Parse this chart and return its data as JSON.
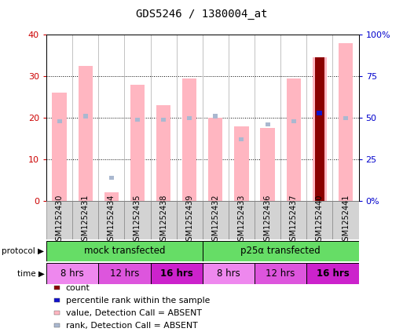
{
  "title": "GDS5246 / 1380004_at",
  "samples": [
    "GSM1252430",
    "GSM1252431",
    "GSM1252434",
    "GSM1252435",
    "GSM1252438",
    "GSM1252439",
    "GSM1252432",
    "GSM1252433",
    "GSM1252436",
    "GSM1252437",
    "GSM1252440",
    "GSM1252441"
  ],
  "value_absent": [
    26,
    32.5,
    2.0,
    28,
    23,
    29.5,
    20,
    18,
    17.5,
    29.5,
    34.5,
    38
  ],
  "rank_absent_pct": [
    48,
    51,
    null,
    49,
    49,
    50,
    51,
    37,
    46,
    48,
    null,
    50
  ],
  "rank_absent_blue_pct": [
    null,
    null,
    14,
    null,
    null,
    null,
    null,
    null,
    null,
    null,
    null,
    null
  ],
  "count_red": [
    null,
    null,
    null,
    null,
    null,
    null,
    null,
    null,
    null,
    null,
    34.5,
    null
  ],
  "rank_blue_special_pct": [
    null,
    null,
    null,
    null,
    null,
    null,
    null,
    null,
    null,
    null,
    53,
    null
  ],
  "ylim_left": [
    0,
    40
  ],
  "ylim_right": [
    0,
    100
  ],
  "left_ticks": [
    0,
    10,
    20,
    30,
    40
  ],
  "right_ticks": [
    0,
    25,
    50,
    75,
    100
  ],
  "right_tick_labels": [
    "0%",
    "25",
    "50",
    "75",
    "100%"
  ],
  "value_absent_color": "#ffb6c1",
  "rank_absent_color": "#aab8d0",
  "count_color": "#8B0000",
  "rank_blue_color": "#1111cc",
  "bg_color": "#ffffff",
  "grid_color": "#000000",
  "label_fontsize": 7.0,
  "title_fontsize": 10,
  "axis_label_color_left": "#cc0000",
  "axis_label_color_right": "#0000cc",
  "legend_items": [
    {
      "label": "count",
      "color": "#8B0000"
    },
    {
      "label": "percentile rank within the sample",
      "color": "#1111cc"
    },
    {
      "label": "value, Detection Call = ABSENT",
      "color": "#ffb6c1"
    },
    {
      "label": "rank, Detection Call = ABSENT",
      "color": "#aab8d0"
    }
  ],
  "protocol_groups": [
    {
      "label": "mock transfected",
      "start": 0,
      "end": 6,
      "color": "#66dd66"
    },
    {
      "label": "p25α transfected",
      "start": 6,
      "end": 12,
      "color": "#66dd66"
    }
  ],
  "time_groups": [
    {
      "label": "8 hrs",
      "start": 0,
      "end": 2,
      "bold": false
    },
    {
      "label": "12 hrs",
      "start": 2,
      "end": 4,
      "bold": false
    },
    {
      "label": "16 hrs",
      "start": 4,
      "end": 6,
      "bold": true
    },
    {
      "label": "8 hrs",
      "start": 6,
      "end": 8,
      "bold": false
    },
    {
      "label": "12 hrs",
      "start": 8,
      "end": 10,
      "bold": false
    },
    {
      "label": "16 hrs",
      "start": 10,
      "end": 12,
      "bold": true
    }
  ],
  "time_colors": {
    "8 hrs_0": "#ee88ee",
    "12 hrs_2": "#dd55dd",
    "16 hrs_4": "#cc22cc",
    "8 hrs_6": "#ee88ee",
    "12 hrs_8": "#dd55dd",
    "16 hrs_10": "#cc22cc"
  }
}
